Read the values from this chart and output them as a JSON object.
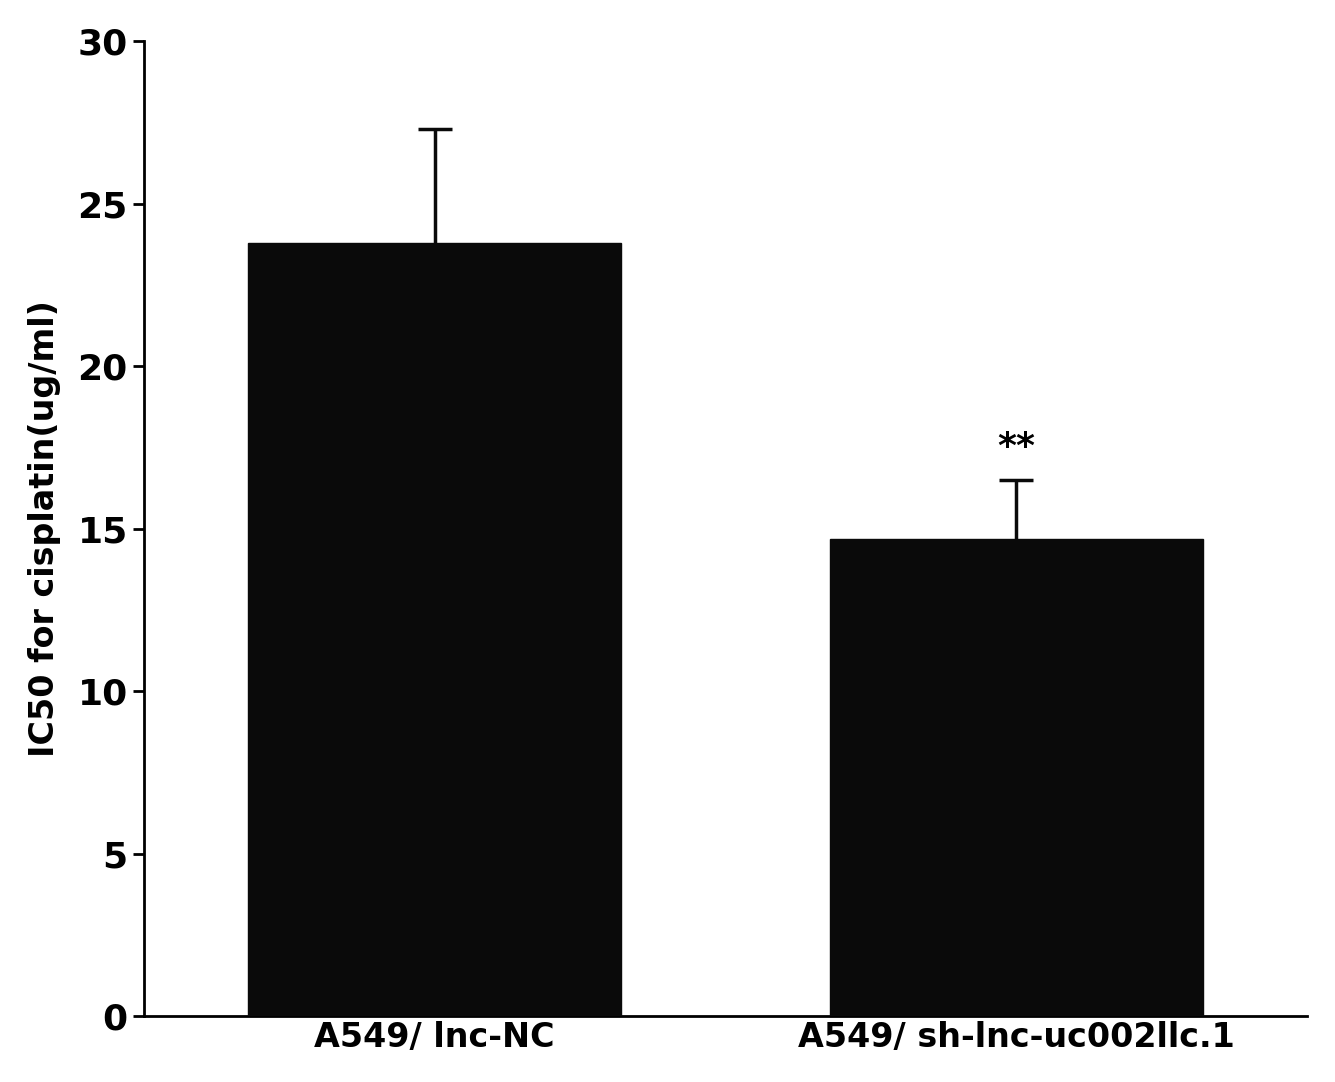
{
  "categories": [
    "A549/ lnc-NC",
    "A549/ sh-lnc-uc002llc.1"
  ],
  "values": [
    23.8,
    14.7
  ],
  "errors": [
    3.5,
    1.8
  ],
  "bar_color": "#0a0a0a",
  "bar_width": 0.32,
  "ylabel": "IC50 for cisplatin(ug/ml)",
  "ylim": [
    0,
    30
  ],
  "yticks": [
    0,
    5,
    10,
    15,
    20,
    25,
    30
  ],
  "significance": "**",
  "sig_bar_index": 1,
  "background_color": "#ffffff",
  "ylabel_fontsize": 24,
  "tick_fontsize": 26,
  "xlabel_fontsize": 24,
  "sig_fontsize": 26,
  "figsize": [
    13.35,
    10.82
  ],
  "dpi": 100,
  "x_positions": [
    0.25,
    0.75
  ]
}
